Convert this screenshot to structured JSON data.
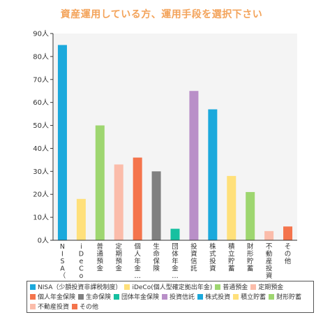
{
  "chart_data": {
    "type": "bar",
    "title": "資産運用している方、運用手段を選択下さい",
    "y_unit": "人",
    "ylim": [
      0,
      90
    ],
    "y_ticks": [
      0,
      10,
      20,
      30,
      40,
      50,
      60,
      70,
      80,
      90
    ],
    "y_tick_labels": [
      "0人",
      "10人",
      "20人",
      "30人",
      "40人",
      "50人",
      "60人",
      "70人",
      "80人",
      "90人"
    ],
    "grid": false,
    "legend_position": "bottom",
    "categories": [
      "NISA（少額投資非課税制度）",
      "iDeCo(個人型確定拠出年金)",
      "普通預金",
      "定期預金",
      "個人年金保険",
      "生命保険",
      "団体年金保険",
      "投資信託",
      "株式投資",
      "積立貯蓄",
      "財形貯蓄",
      "不動産投資",
      "その他"
    ],
    "tick_labels": [
      [
        "N",
        "I",
        "S",
        "A",
        "（",
        "少",
        "…"
      ],
      [
        "i",
        "D",
        "e",
        "C",
        "o",
        "（",
        "…"
      ],
      [
        "普",
        "通",
        "預",
        "金"
      ],
      [
        "定",
        "期",
        "預",
        "金"
      ],
      [
        "個",
        "人",
        "年",
        "金",
        "…"
      ],
      [
        "生",
        "命",
        "保",
        "険"
      ],
      [
        "団",
        "体",
        "年",
        "金",
        "…"
      ],
      [
        "投",
        "資",
        "信",
        "託"
      ],
      [
        "株",
        "式",
        "投",
        "資"
      ],
      [
        "積",
        "立",
        "貯",
        "蓄"
      ],
      [
        "財",
        "形",
        "貯",
        "蓄"
      ],
      [
        "不",
        "動",
        "産",
        "投",
        "資"
      ],
      [
        "そ",
        "の",
        "他"
      ]
    ],
    "values": [
      85,
      18,
      50,
      33,
      36,
      30,
      5,
      65,
      57,
      28,
      21,
      4,
      6
    ],
    "colors": [
      "#1ba9dc",
      "#ffe07a",
      "#9ed670",
      "#fbbcaa",
      "#f4744c",
      "#808080",
      "#16c0a0",
      "#b98fc8",
      "#1ba9dc",
      "#ffe07a",
      "#9ed670",
      "#fbbcaa",
      "#f4744c"
    ]
  }
}
